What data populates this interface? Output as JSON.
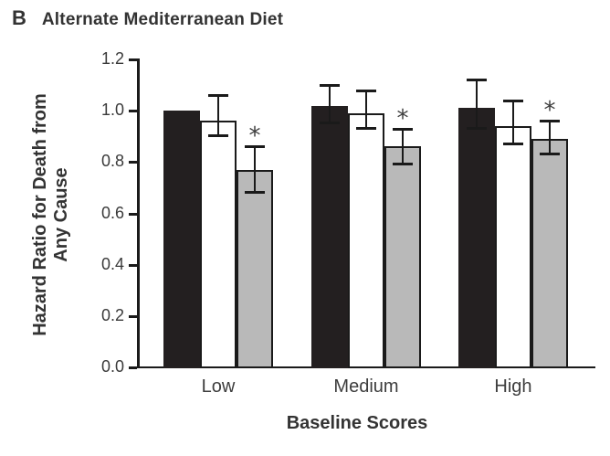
{
  "title": {
    "panel_letter": "B",
    "text": "Alternate Mediterranean Diet"
  },
  "chart_data": {
    "type": "bar",
    "title": "Alternate Mediterranean Diet",
    "xlabel": "Baseline Scores",
    "ylabel": "Hazard Ratio for Death from Any Cause",
    "ylabel_lines": [
      "Hazard Ratio for Death from",
      "Any Cause"
    ],
    "categories": [
      "Low",
      "Medium",
      "High"
    ],
    "y_ticks": [
      "0.0",
      "0.2",
      "0.4",
      "0.6",
      "0.8",
      "1.0",
      "1.2"
    ],
    "ylim": [
      0,
      1.2
    ],
    "grid": "off",
    "legend": "none",
    "series": [
      {
        "name": "black-bars",
        "fill_color": "#231f20",
        "values": [
          1.0,
          1.02,
          1.01
        ],
        "ci_low": [
          null,
          0.95,
          0.93
        ],
        "ci_high": [
          null,
          1.1,
          1.12
        ],
        "significant": [
          false,
          false,
          false
        ]
      },
      {
        "name": "white-bars",
        "fill_color": "#ffffff",
        "values": [
          0.96,
          0.99,
          0.94
        ],
        "ci_low": [
          0.9,
          0.93,
          0.87
        ],
        "ci_high": [
          1.06,
          1.08,
          1.04
        ],
        "significant": [
          false,
          false,
          false
        ]
      },
      {
        "name": "gray-bars",
        "fill_color": "#b9b9b9",
        "values": [
          0.77,
          0.86,
          0.89
        ],
        "ci_low": [
          0.68,
          0.79,
          0.83
        ],
        "ci_high": [
          0.86,
          0.93,
          0.96
        ],
        "significant": [
          true,
          true,
          true
        ]
      }
    ],
    "annotations": {
      "significance_marker": "*"
    }
  }
}
